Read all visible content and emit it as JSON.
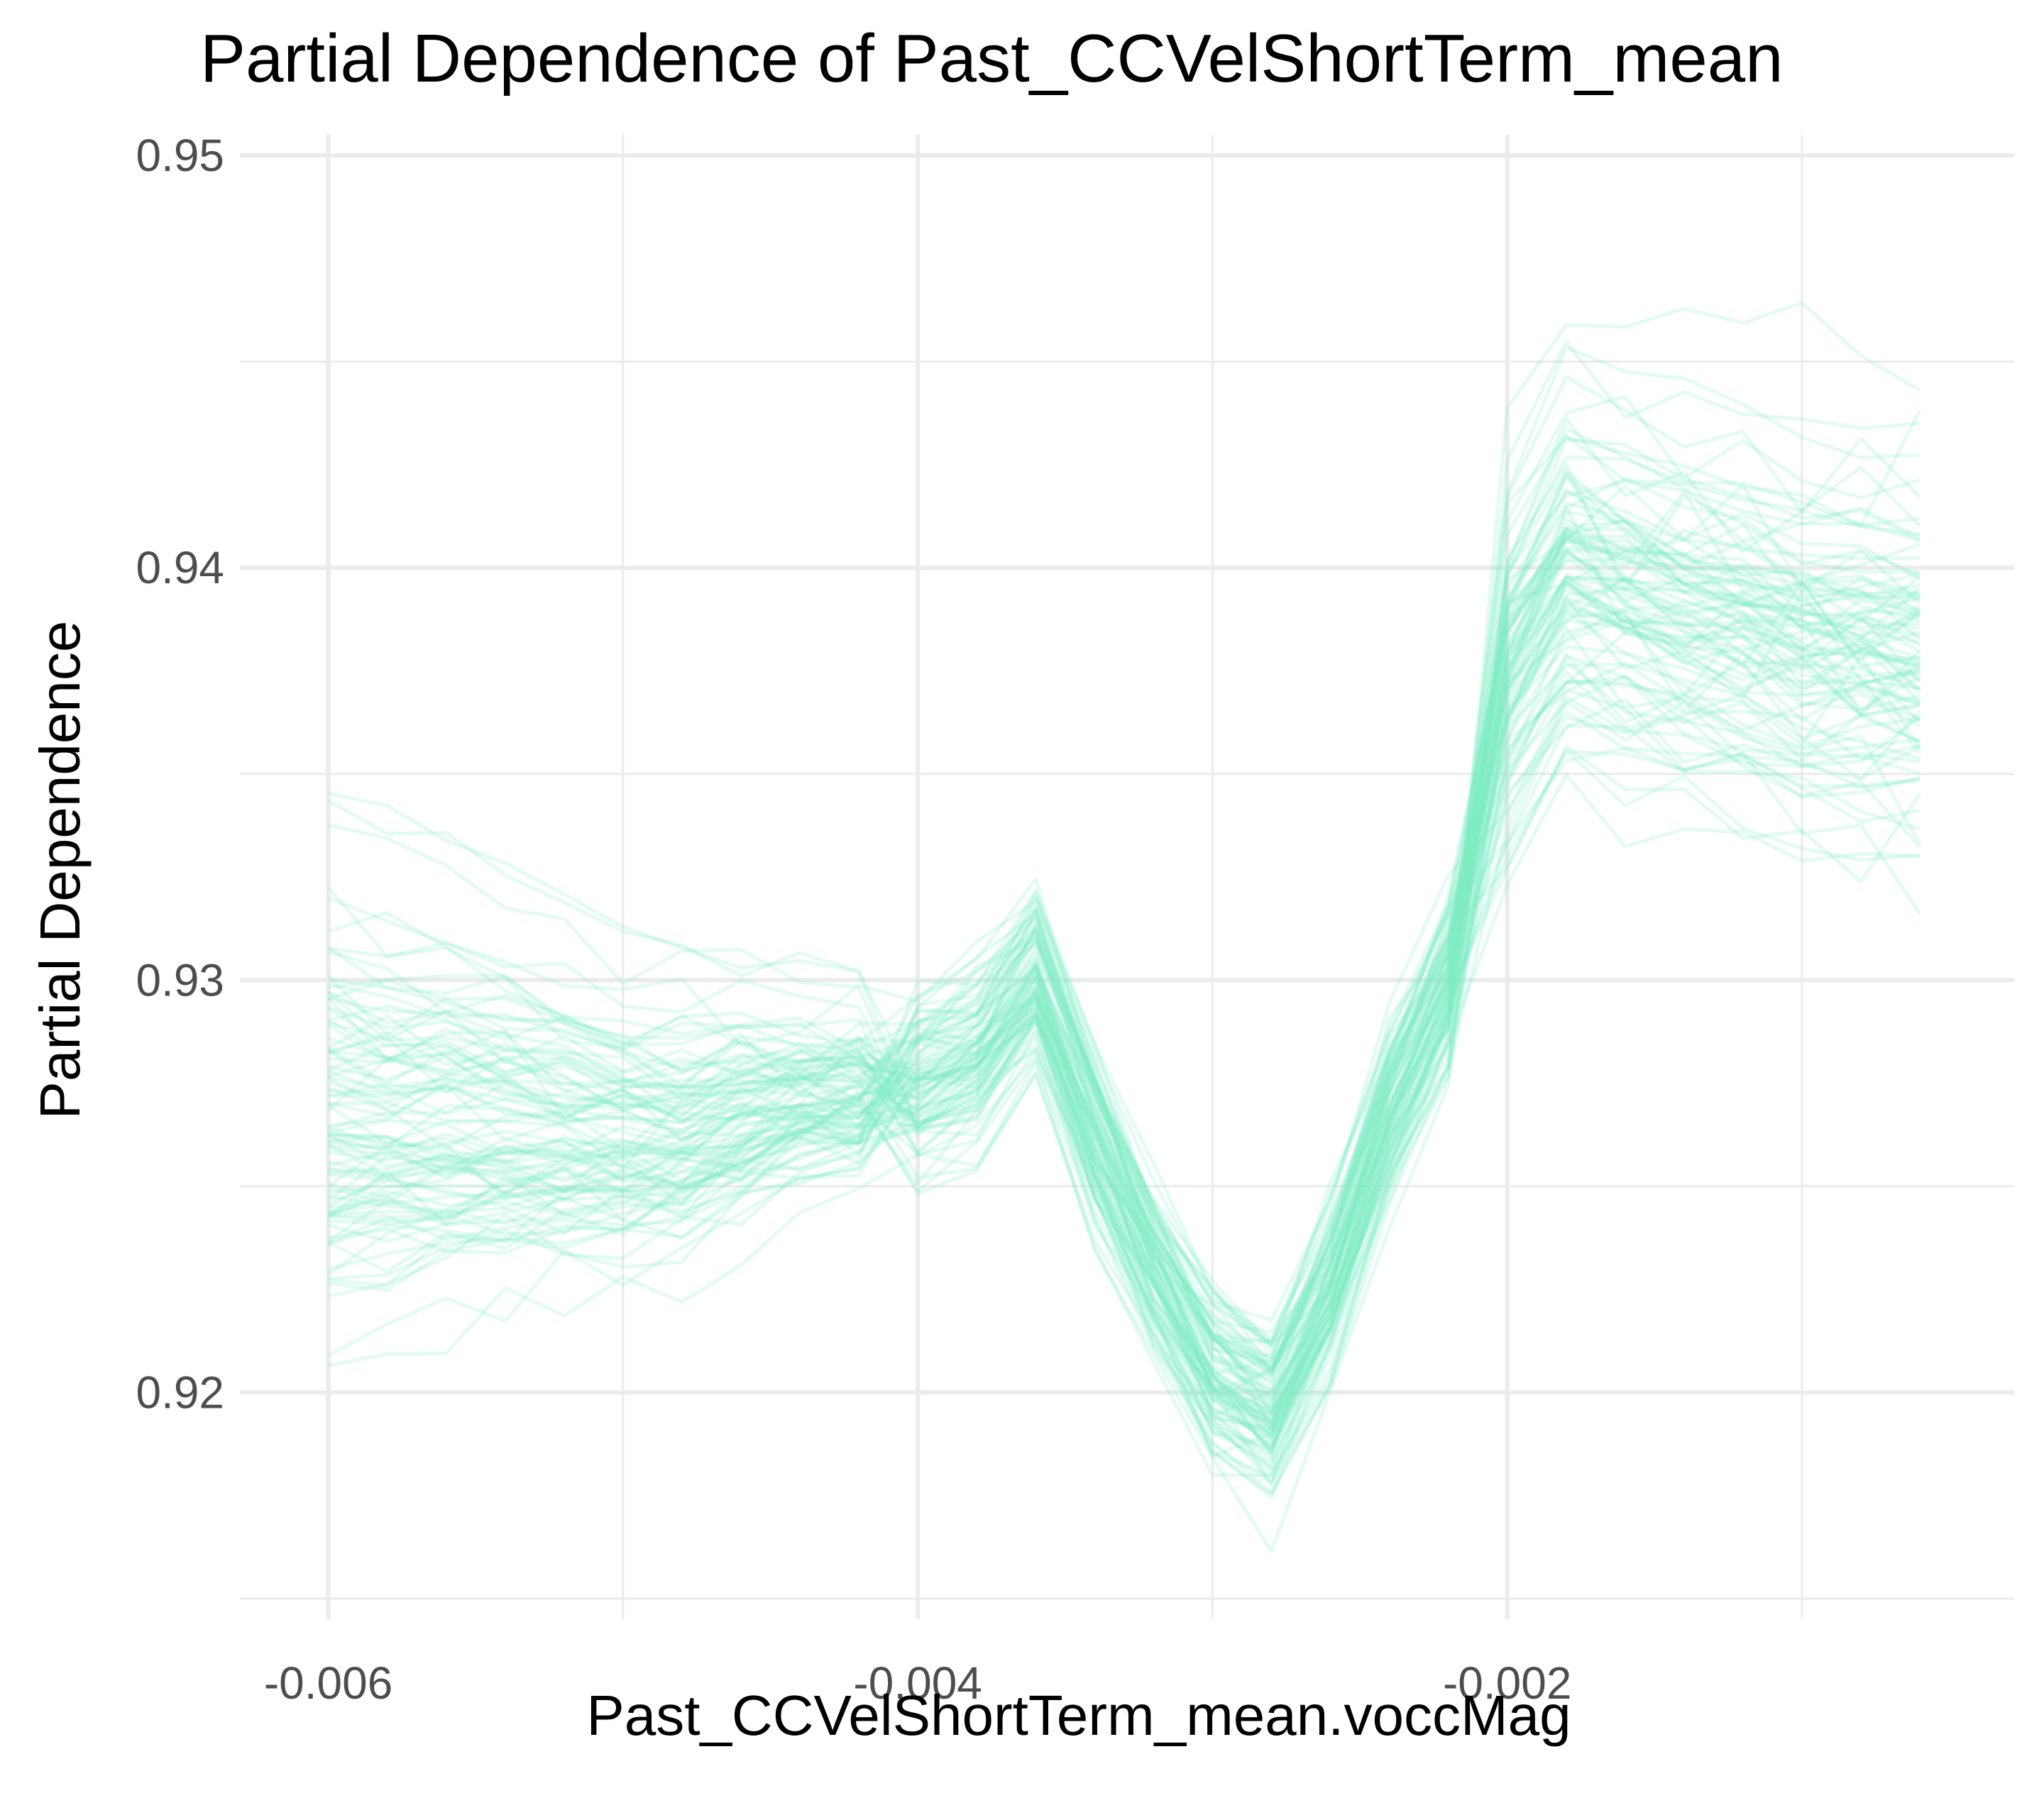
{
  "chart_data": {
    "type": "line",
    "title": "Partial Dependence of Past_CCVelShortTerm_mean",
    "xlabel": "Past_CCVelShortTerm_mean.voccMag",
    "ylabel": "Partial Dependence",
    "xlim": [
      -0.0063,
      -0.00028
    ],
    "ylim": [
      0.9145,
      0.9505
    ],
    "x_ticks": [
      -0.006,
      -0.004,
      -0.002
    ],
    "x_tick_labels": [
      "-0.006",
      "-0.004",
      "-0.002"
    ],
    "y_ticks": [
      0.92,
      0.93,
      0.94,
      0.95
    ],
    "y_tick_labels": [
      "0.92",
      "0.93",
      "0.94",
      "0.95"
    ],
    "x_minor_ticks": [
      -0.005,
      -0.003,
      -0.001
    ],
    "y_minor_ticks": [
      0.915,
      0.925,
      0.935,
      0.945
    ],
    "grid": true,
    "legend": "none",
    "line_color": "#7fefc6",
    "line_opacity": 0.22,
    "grid_color": "#ebebeb",
    "x_grid_values": [
      -0.006,
      -0.0058,
      -0.0056,
      -0.0054,
      -0.0052,
      -0.005,
      -0.0048,
      -0.0046,
      -0.0044,
      -0.0042,
      -0.004,
      -0.0038,
      -0.0036,
      -0.0034,
      -0.0032,
      -0.003,
      -0.0028,
      -0.0026,
      -0.0024,
      -0.0022,
      -0.002,
      -0.0018,
      -0.0016,
      -0.0014,
      -0.0012,
      -0.001,
      -0.0008,
      -0.0006
    ],
    "profile": {
      "description_values": [
        0.9265,
        0.9265,
        0.9265,
        0.9264,
        0.9263,
        0.9262,
        0.9262,
        0.9267,
        0.927,
        0.9272,
        0.9275,
        0.9283,
        0.93,
        0.9262,
        0.923,
        0.9205,
        0.9195,
        0.9225,
        0.9268,
        0.93,
        0.937,
        0.9395,
        0.939,
        0.9385,
        0.9382,
        0.9378,
        0.9376,
        0.9375
      ]
    },
    "series_count": 100
  }
}
